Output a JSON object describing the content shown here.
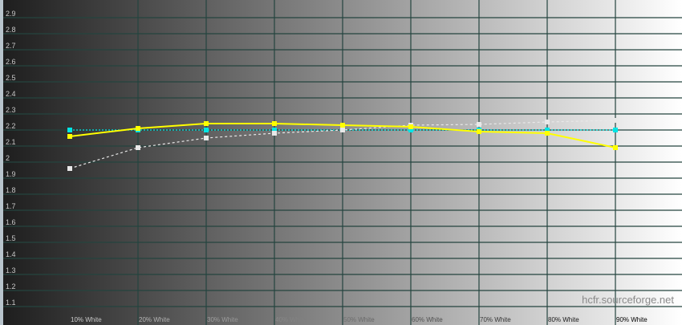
{
  "chart_data": {
    "type": "line",
    "title": "",
    "xlabel": "",
    "ylabel": "",
    "categories": [
      "10% White",
      "20% White",
      "30% White",
      "40% White",
      "50% White",
      "60% White",
      "70% White",
      "80% White",
      "90% White"
    ],
    "ylim": [
      1.0,
      3.0
    ],
    "yticks": [
      "1.1",
      "1.2",
      "1.3",
      "1.4",
      "1.5",
      "1.6",
      "1.7",
      "1.8",
      "1.9",
      "2",
      "2.1",
      "2.2",
      "2.3",
      "2.4",
      "2.5",
      "2.6",
      "2.7",
      "2.8",
      "2.9"
    ],
    "grid": true,
    "series": [
      {
        "color": "#00e5e5",
        "style": "dotted",
        "values": [
          2.2,
          2.2,
          2.2,
          2.2,
          2.2,
          2.2,
          2.2,
          2.2,
          2.2
        ]
      },
      {
        "color": "#e8e8e8",
        "style": "dashed",
        "values": [
          1.96,
          2.09,
          2.15,
          2.18,
          2.2,
          2.23,
          2.235,
          2.25,
          2.26
        ]
      },
      {
        "color": "#ffff00",
        "style": "solid",
        "values": [
          2.16,
          2.21,
          2.24,
          2.24,
          2.23,
          2.22,
          2.19,
          2.18,
          2.09
        ]
      }
    ]
  },
  "watermark": "hcfr.sourceforge.net"
}
